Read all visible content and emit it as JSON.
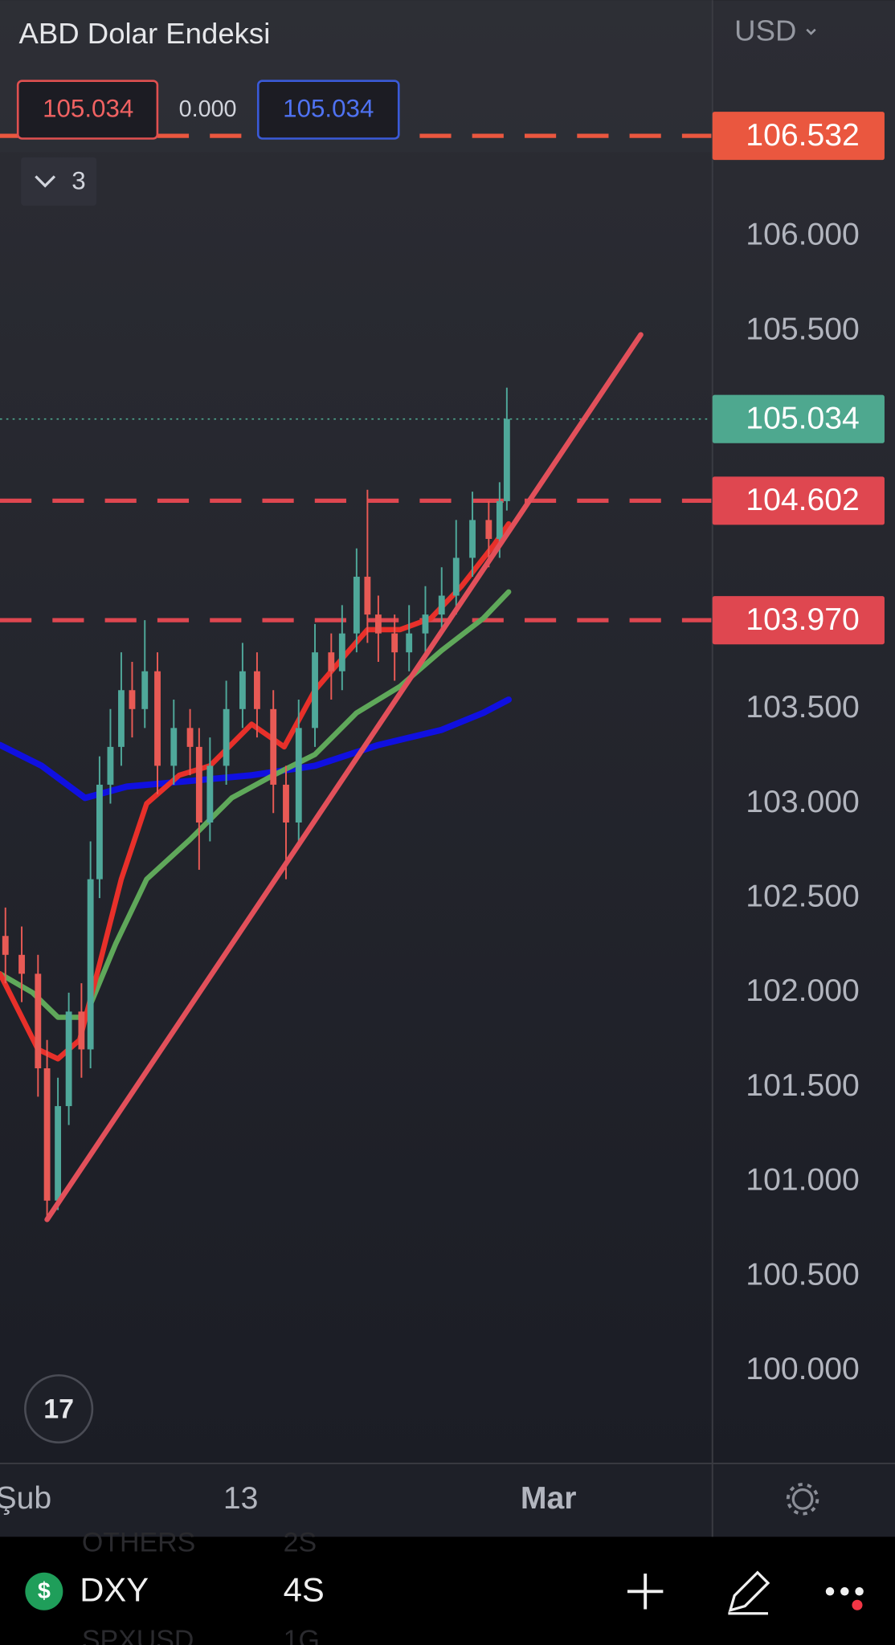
{
  "header": {
    "title": "ABD Dolar Endeksi",
    "currency": "USD",
    "bid": "105.034",
    "spread": "0.000",
    "ask": "105.034",
    "indicators": "3"
  },
  "chart_data": {
    "type": "candlestick",
    "xlim": [
      -1.3,
      38
    ],
    "ylim": [
      99.51,
      107.25
    ],
    "yticks": [
      {
        "value": 106,
        "label": "106.000"
      },
      {
        "value": 105.5,
        "label": "105.500"
      },
      {
        "value": 103.5,
        "label": "103.500"
      },
      {
        "value": 103,
        "label": "103.000"
      },
      {
        "value": 102.5,
        "label": "102.500"
      },
      {
        "value": 102,
        "label": "102.000"
      },
      {
        "value": 101.5,
        "label": "101.500"
      },
      {
        "value": 101,
        "label": "101.000"
      },
      {
        "value": 100.5,
        "label": "100.500"
      },
      {
        "value": 100,
        "label": "100.000"
      }
    ],
    "xticks": [
      {
        "value": 0,
        "label": "Şub"
      },
      {
        "value": 12,
        "label": "13"
      },
      {
        "value": 29,
        "label": "Mar"
      }
    ],
    "up_color": "#4fa89a",
    "down_color": "#e85a55",
    "candles": [
      {
        "x": -1.0,
        "open": 102.3,
        "high": 102.45,
        "low": 102.05,
        "close": 102.2
      },
      {
        "x": -0.1,
        "open": 102.2,
        "high": 102.35,
        "low": 101.95,
        "close": 102.1
      },
      {
        "x": 0.8,
        "open": 102.1,
        "high": 102.2,
        "low": 101.45,
        "close": 101.6
      },
      {
        "x": 1.3,
        "open": 101.6,
        "high": 101.75,
        "low": 100.8,
        "close": 100.9
      },
      {
        "x": 1.9,
        "open": 100.9,
        "high": 101.55,
        "low": 100.85,
        "close": 101.4
      },
      {
        "x": 2.5,
        "open": 101.4,
        "high": 102.0,
        "low": 101.3,
        "close": 101.9
      },
      {
        "x": 3.2,
        "open": 101.9,
        "high": 102.05,
        "low": 101.55,
        "close": 101.7
      },
      {
        "x": 3.7,
        "open": 101.7,
        "high": 102.8,
        "low": 101.6,
        "close": 102.6
      },
      {
        "x": 4.2,
        "open": 102.6,
        "high": 103.25,
        "low": 102.5,
        "close": 103.1
      },
      {
        "x": 4.8,
        "open": 103.1,
        "high": 103.5,
        "low": 103.0,
        "close": 103.3
      },
      {
        "x": 5.4,
        "open": 103.3,
        "high": 103.8,
        "low": 103.2,
        "close": 103.6
      },
      {
        "x": 6.0,
        "open": 103.6,
        "high": 103.75,
        "low": 103.35,
        "close": 103.5
      },
      {
        "x": 6.7,
        "open": 103.5,
        "high": 103.97,
        "low": 103.4,
        "close": 103.7
      },
      {
        "x": 7.4,
        "open": 103.7,
        "high": 103.8,
        "low": 103.05,
        "close": 103.2
      },
      {
        "x": 8.3,
        "open": 103.2,
        "high": 103.55,
        "low": 103.1,
        "close": 103.4
      },
      {
        "x": 9.2,
        "open": 103.4,
        "high": 103.5,
        "low": 103.15,
        "close": 103.3
      },
      {
        "x": 9.7,
        "open": 103.3,
        "high": 103.4,
        "low": 102.65,
        "close": 102.9
      },
      {
        "x": 10.3,
        "open": 102.9,
        "high": 103.35,
        "low": 102.8,
        "close": 103.2
      },
      {
        "x": 11.2,
        "open": 103.2,
        "high": 103.65,
        "low": 103.1,
        "close": 103.5
      },
      {
        "x": 12.1,
        "open": 103.5,
        "high": 103.85,
        "low": 103.4,
        "close": 103.7
      },
      {
        "x": 12.9,
        "open": 103.7,
        "high": 103.8,
        "low": 103.35,
        "close": 103.5
      },
      {
        "x": 13.8,
        "open": 103.5,
        "high": 103.6,
        "low": 102.95,
        "close": 103.1
      },
      {
        "x": 14.5,
        "open": 103.1,
        "high": 103.2,
        "low": 102.6,
        "close": 102.9
      },
      {
        "x": 15.2,
        "open": 102.9,
        "high": 103.55,
        "low": 102.8,
        "close": 103.4
      },
      {
        "x": 16.1,
        "open": 103.4,
        "high": 103.95,
        "low": 103.3,
        "close": 103.8
      },
      {
        "x": 17.0,
        "open": 103.8,
        "high": 103.9,
        "low": 103.55,
        "close": 103.7
      },
      {
        "x": 17.6,
        "open": 103.7,
        "high": 104.05,
        "low": 103.6,
        "close": 103.9
      },
      {
        "x": 18.4,
        "open": 103.9,
        "high": 104.35,
        "low": 103.8,
        "close": 104.2
      },
      {
        "x": 19.0,
        "open": 104.2,
        "high": 104.66,
        "low": 103.85,
        "close": 104.0
      },
      {
        "x": 19.6,
        "open": 104.0,
        "high": 104.1,
        "low": 103.75,
        "close": 103.9
      },
      {
        "x": 20.5,
        "open": 103.9,
        "high": 104.0,
        "low": 103.65,
        "close": 103.8
      },
      {
        "x": 21.3,
        "open": 103.8,
        "high": 104.05,
        "low": 103.7,
        "close": 103.9
      },
      {
        "x": 22.2,
        "open": 103.9,
        "high": 104.15,
        "low": 103.8,
        "close": 104.0
      },
      {
        "x": 23.1,
        "open": 104.0,
        "high": 104.25,
        "low": 103.9,
        "close": 104.1
      },
      {
        "x": 23.9,
        "open": 104.1,
        "high": 104.5,
        "low": 104.0,
        "close": 104.3
      },
      {
        "x": 24.8,
        "open": 104.3,
        "high": 104.65,
        "low": 104.2,
        "close": 104.5
      },
      {
        "x": 25.7,
        "open": 104.5,
        "high": 104.6,
        "low": 104.25,
        "close": 104.4
      },
      {
        "x": 26.3,
        "open": 104.4,
        "high": 104.7,
        "low": 104.3,
        "close": 104.6
      },
      {
        "x": 26.7,
        "open": 104.6,
        "high": 105.2,
        "low": 104.55,
        "close": 105.034
      }
    ],
    "series": [
      {
        "color": "#1010e0",
        "x": [
          -1.3,
          1.0,
          3.4,
          5.7,
          9.2,
          12.6,
          16.1,
          19.6,
          23.1,
          25.4,
          26.8
        ],
        "values": [
          103.31,
          103.2,
          103.03,
          103.09,
          103.12,
          103.15,
          103.2,
          103.31,
          103.39,
          103.48,
          103.55
        ]
      },
      {
        "color": "#5fa85a",
        "x": [
          -1.3,
          0.5,
          1.9,
          3.4,
          5.1,
          6.8,
          9.2,
          11.5,
          13.8,
          16.1,
          18.4,
          20.8,
          23.1,
          25.4,
          26.8
        ],
        "values": [
          102.1,
          102.0,
          101.87,
          101.87,
          102.26,
          102.6,
          102.81,
          103.03,
          103.15,
          103.26,
          103.48,
          103.62,
          103.81,
          103.98,
          104.12
        ]
      },
      {
        "color": "#e8302a",
        "x": [
          -1.3,
          0.8,
          1.9,
          3.1,
          4.2,
          5.4,
          6.8,
          8.6,
          10.3,
          12.6,
          14.4,
          16.1,
          17.9,
          19.0,
          20.8,
          22.5,
          24.2,
          26.0,
          26.8
        ],
        "values": [
          102.1,
          101.7,
          101.65,
          101.75,
          102.15,
          102.6,
          103.0,
          103.15,
          103.2,
          103.42,
          103.3,
          103.6,
          103.8,
          103.92,
          103.92,
          103.98,
          104.15,
          104.37,
          104.48
        ]
      }
    ],
    "trendline": {
      "color": "#e2505a",
      "x": [
        1.3,
        34.1
      ],
      "values": [
        100.8,
        105.48
      ]
    },
    "levels": [
      {
        "value": 106.532,
        "label": "106.532",
        "color": "#ea573f"
      },
      {
        "value": 104.602,
        "label": "104.602",
        "color": "#df4750"
      },
      {
        "value": 103.97,
        "label": "103.970",
        "color": "#df4750"
      }
    ],
    "last_price": {
      "value": 105.034,
      "label": "105.034",
      "color": "#4ea88f"
    }
  },
  "footer": {
    "symbol": "DXY",
    "interval": "4S",
    "behind": [
      "OTHERS",
      "2S",
      "SPXUSD",
      "1G"
    ]
  }
}
